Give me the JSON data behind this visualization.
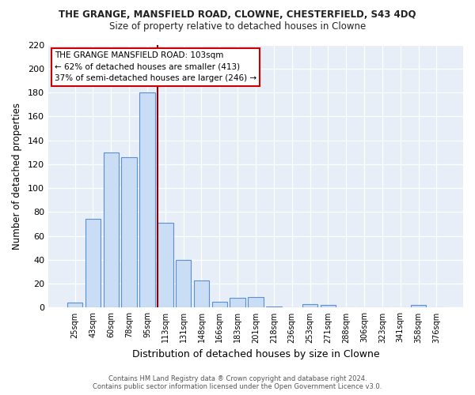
{
  "title": "THE GRANGE, MANSFIELD ROAD, CLOWNE, CHESTERFIELD, S43 4DQ",
  "subtitle": "Size of property relative to detached houses in Clowne",
  "xlabel": "Distribution of detached houses by size in Clowne",
  "ylabel": "Number of detached properties",
  "bar_labels": [
    "25sqm",
    "43sqm",
    "60sqm",
    "78sqm",
    "95sqm",
    "113sqm",
    "131sqm",
    "148sqm",
    "166sqm",
    "183sqm",
    "201sqm",
    "218sqm",
    "236sqm",
    "253sqm",
    "271sqm",
    "288sqm",
    "306sqm",
    "323sqm",
    "341sqm",
    "358sqm",
    "376sqm"
  ],
  "bar_values": [
    4,
    74,
    130,
    126,
    180,
    71,
    40,
    23,
    5,
    8,
    9,
    1,
    0,
    3,
    2,
    0,
    0,
    0,
    0,
    2,
    0
  ],
  "bar_color": "#c9ddf5",
  "bar_edgecolor": "#5b8fd4",
  "plot_bg_color": "#e8eef8",
  "fig_bg_color": "#ffffff",
  "grid_color": "#ffffff",
  "vline_color": "#8b0000",
  "vline_x_index": 5,
  "annotation_title": "THE GRANGE MANSFIELD ROAD: 103sqm",
  "annotation_line2": "← 62% of detached houses are smaller (413)",
  "annotation_line3": "37% of semi-detached houses are larger (246) →",
  "annotation_box_facecolor": "#ffffff",
  "annotation_box_edgecolor": "#cc0000",
  "footer_line1": "Contains HM Land Registry data ® Crown copyright and database right 2024.",
  "footer_line2": "Contains public sector information licensed under the Open Government Licence v3.0.",
  "ylim": [
    0,
    220
  ],
  "yticks": [
    0,
    20,
    40,
    60,
    80,
    100,
    120,
    140,
    160,
    180,
    200,
    220
  ]
}
